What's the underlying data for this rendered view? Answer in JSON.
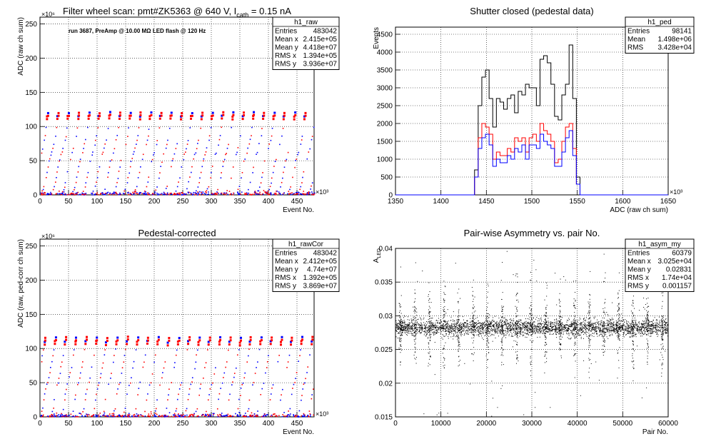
{
  "chart_data": [
    {
      "id": "raw",
      "type": "scatter",
      "title": "Filter wheel scan: pmt#ZK5363 @   640 V, I",
      "title_sub": "cath",
      "title_tail": " = 0.15 nA",
      "annotation": "run 3687, PreAmp @ 10.00 MΩ LED flash @  120 Hz",
      "xlabel": "Event No.",
      "ylabel": "ADC (raw ch sum)",
      "x_exponent": "×10³",
      "y_exponent": "×10⁶",
      "xlim": [
        0,
        480
      ],
      "ylim": [
        0,
        260
      ],
      "xticks": [
        0,
        50,
        100,
        150,
        200,
        250,
        300,
        350,
        400,
        450
      ],
      "yticks": [
        0,
        50,
        100,
        150,
        200,
        250
      ],
      "grid": true,
      "series_colors": [
        "#0000ff",
        "#ff0000"
      ],
      "stats_box": {
        "name": "h1_raw",
        "rows": [
          [
            "Entries",
            "483042"
          ],
          [
            "Mean x",
            "2.415e+05"
          ],
          [
            "Mean y",
            "4.418e+07"
          ],
          [
            "RMS x",
            "1.394e+05"
          ],
          [
            "RMS y",
            "3.936e+07"
          ]
        ]
      },
      "levels": [
        2,
        5,
        8,
        12,
        18,
        25,
        33,
        41,
        49,
        52,
        59,
        62,
        68,
        74,
        80,
        86,
        98,
        115,
        120
      ],
      "period": 18
    },
    {
      "id": "ped",
      "type": "histogram",
      "title": "Shutter closed (pedestal data)",
      "xlabel": "ADC (raw ch sum)",
      "ylabel": "Events",
      "x_exponent": "×10³",
      "xlim": [
        1350,
        1650
      ],
      "ylim": [
        0,
        4700
      ],
      "xticks": [
        1350,
        1400,
        1450,
        1500,
        1550,
        1600,
        1650
      ],
      "yticks": [
        0,
        500,
        1000,
        1500,
        2000,
        2500,
        3000,
        3500,
        4000,
        4500
      ],
      "grid": true,
      "bin_start": 1437,
      "bin_width": 4,
      "series": [
        {
          "color": "#000000",
          "values": [
            700,
            2500,
            3300,
            3500,
            2700,
            1900,
            2700,
            2600,
            2400,
            2700,
            2800,
            2300,
            2900,
            2800,
            3100,
            3000,
            3000,
            2500,
            3800,
            3900,
            3700,
            3100,
            2200,
            2100,
            2800,
            3100,
            4200,
            2700,
            500
          ]
        },
        {
          "color": "#ff0000",
          "values": [
            500,
            1600,
            2000,
            1900,
            1700,
            1000,
            1200,
            1100,
            1100,
            1300,
            1200,
            1600,
            1500,
            1600,
            1200,
            1600,
            1700,
            1500,
            2000,
            1800,
            1700,
            1500,
            900,
            1000,
            1500,
            1900,
            2000,
            1300,
            300
          ]
        },
        {
          "color": "#0000ff",
          "values": [
            500,
            1300,
            1600,
            1700,
            1400,
            800,
            1000,
            900,
            900,
            1100,
            1000,
            1300,
            1200,
            1400,
            1000,
            1400,
            1400,
            1300,
            1700,
            1500,
            1400,
            1300,
            800,
            800,
            1200,
            1600,
            1800,
            1100,
            300
          ]
        }
      ],
      "stats_box": {
        "name": "h1_ped",
        "rows": [
          [
            "Entries",
            "98141"
          ],
          [
            "Mean",
            "1.498e+06"
          ],
          [
            "RMS",
            "3.428e+04"
          ]
        ]
      }
    },
    {
      "id": "cor",
      "type": "scatter",
      "title": "Pedestal-corrected",
      "xlabel": "Event No.",
      "ylabel": "ADC (raw, ped-corr ch sum)",
      "x_exponent": "×10³",
      "y_exponent": "×10⁶",
      "xlim": [
        0,
        480
      ],
      "ylim": [
        0,
        260
      ],
      "xticks": [
        0,
        50,
        100,
        150,
        200,
        250,
        300,
        350,
        400,
        450
      ],
      "yticks": [
        0,
        50,
        100,
        150,
        200,
        250
      ],
      "grid": true,
      "series_colors": [
        "#0000ff",
        "#ff0000"
      ],
      "stats_box": {
        "name": "h1_rawCor",
        "rows": [
          [
            "Entries",
            "483042"
          ],
          [
            "Mean x",
            "2.412e+05"
          ],
          [
            "Mean y",
            "4.74e+07"
          ],
          [
            "RMS x",
            "1.392e+05"
          ],
          [
            "RMS y",
            "3.869e+07"
          ]
        ]
      },
      "levels": [
        2,
        8,
        12,
        25,
        33,
        41,
        47,
        50,
        57,
        64,
        72,
        80,
        90,
        98,
        110,
        116
      ],
      "period": 18
    },
    {
      "id": "asym",
      "type": "scatter",
      "title": "Pair-wise Asymmetry vs. pair No.",
      "xlabel": "Pair No.",
      "ylabel": "A",
      "ylabel_sub": "LED",
      "xlim": [
        0,
        60000
      ],
      "ylim": [
        0.015,
        0.04
      ],
      "xticks": [
        0,
        10000,
        20000,
        30000,
        40000,
        50000,
        60000
      ],
      "yticks": [
        0.015,
        0.02,
        0.025,
        0.03,
        0.035,
        0.04
      ],
      "grid": true,
      "band_center": 0.0283,
      "band_rms": 0.0006,
      "spike_period": 3200,
      "stats_box": {
        "name": "h1_asym_my",
        "rows": [
          [
            "Entries",
            "60379"
          ],
          [
            "Mean x",
            "3.025e+04"
          ],
          [
            "Mean y",
            "0.02831"
          ],
          [
            "RMS x",
            "1.74e+04"
          ],
          [
            "RMS y",
            "0.001157"
          ]
        ]
      }
    }
  ]
}
